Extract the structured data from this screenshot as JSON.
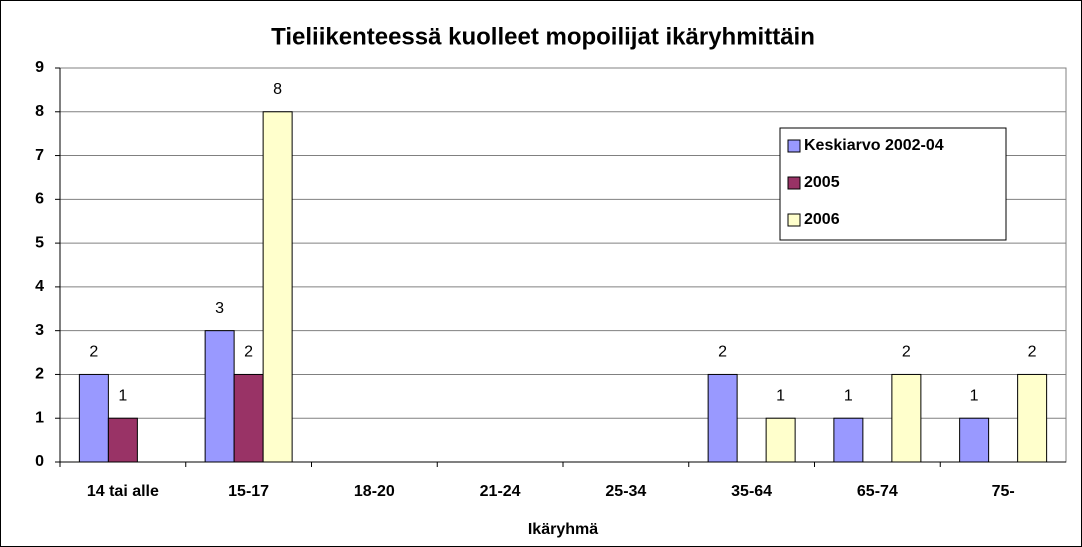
{
  "chart_data": {
    "type": "bar",
    "title": "Tieliikenteessä kuolleet mopoilijat ikäryhmittäin",
    "x_label": "Ikäryhmä",
    "categories": [
      "14 tai alle",
      "15-17",
      "18-20",
      "21-24",
      "25-34",
      "35-64",
      "65-74",
      "75-"
    ],
    "series": [
      {
        "name": "Keskiarvo 2002-04",
        "color": "#9999ff",
        "values": [
          2,
          3,
          null,
          null,
          null,
          2,
          1,
          1
        ]
      },
      {
        "name": "2005",
        "color": "#993366",
        "values": [
          1,
          2,
          null,
          null,
          null,
          null,
          null,
          null
        ]
      },
      {
        "name": "2006",
        "color": "#ffffcc",
        "values": [
          null,
          8,
          null,
          null,
          null,
          1,
          2,
          2
        ]
      }
    ],
    "ylim": [
      0,
      9
    ],
    "yticks": [
      0,
      1,
      2,
      3,
      4,
      5,
      6,
      7,
      8,
      9
    ],
    "grid": true,
    "legend": "upper right"
  }
}
